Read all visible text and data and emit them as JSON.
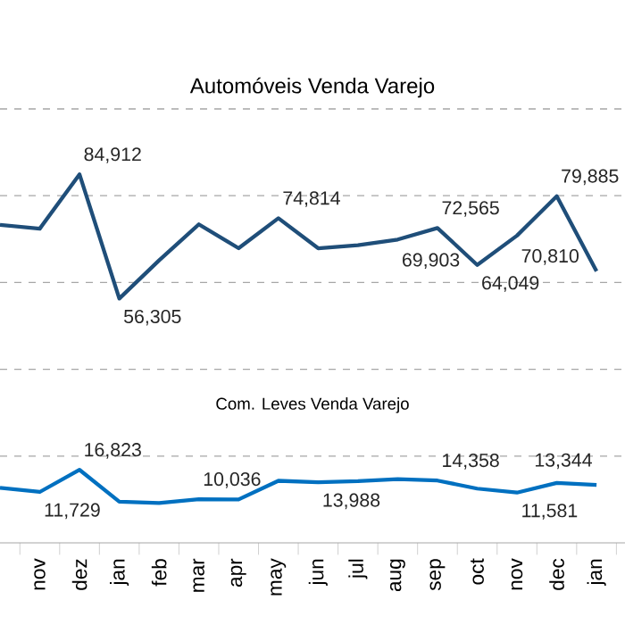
{
  "chart_data": {
    "type": "line",
    "title": "Automóveis Venda Varejo",
    "categories": [
      null,
      "nov",
      "dez",
      "jan",
      "feb",
      "mar",
      "apr",
      "may",
      "jun",
      "jul",
      "aug",
      "sep",
      "oct",
      "nov",
      "dec",
      "jan"
    ],
    "series": [
      {
        "color": "#1f4e79",
        "values": [
          73300,
          72400,
          84912,
          56305,
          65100,
          73400,
          67900,
          74814,
          67900,
          68600,
          69903,
          72565,
          64049,
          70810,
          79885,
          62600
        ],
        "value_labels": [
          null,
          null,
          "84,912",
          "56,305",
          null,
          null,
          null,
          "74,814",
          null,
          null,
          "69,903",
          "72,565",
          "64,049",
          "70,810",
          "79,885",
          null
        ]
      },
      {
        "name": "Com. Leves Venda Varejo",
        "color": "#0070c0",
        "values": [
          12700,
          11729,
          16823,
          9500,
          9200,
          10036,
          10000,
          14300,
          13988,
          14200,
          14700,
          14358,
          12500,
          11581,
          13800,
          13344
        ],
        "value_labels": [
          null,
          "11,729",
          "16,823",
          null,
          null,
          "10,036",
          null,
          null,
          "13,988",
          null,
          null,
          "14,358",
          null,
          "11,581",
          null,
          "13,344"
        ]
      }
    ],
    "ylim": [
      0,
      100000
    ],
    "yticks": [
      {
        "value": 20000,
        "label": null
      },
      {
        "value": 40000,
        "label": null
      },
      {
        "value": 60000,
        "label": null
      },
      {
        "value": 80000,
        "label": null
      },
      {
        "value": 100000,
        "label": null
      }
    ],
    "grid": "y",
    "legend": false,
    "tick_labels": "x",
    "marker": "none",
    "line_style": "solid"
  }
}
